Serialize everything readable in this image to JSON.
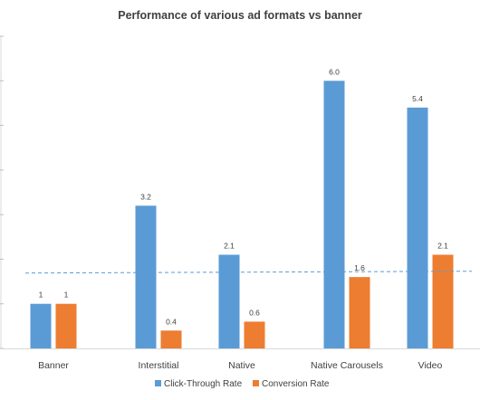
{
  "chart_data": {
    "type": "bar",
    "title": "Performance of various ad formats vs banner",
    "categories": [
      "Banner",
      "Interstitial",
      "Native",
      "Native Carousels",
      "Video"
    ],
    "series": [
      {
        "name": "Click-Through Rate",
        "color": "#5B9BD5",
        "values": [
          1,
          3.2,
          2.1,
          6.0,
          5.4
        ],
        "labels": [
          "1",
          "3.2",
          "2.1",
          "6.0",
          "5.4"
        ]
      },
      {
        "name": "Conversion Rate",
        "color": "#ED7D31",
        "values": [
          1,
          0.4,
          0.6,
          1.6,
          2.1
        ],
        "labels": [
          "1",
          "0.4",
          "0.6",
          "1.6",
          "2.1"
        ]
      }
    ],
    "reference_line": {
      "value": 1.7,
      "color": "#5B9BD5",
      "style": "dashed"
    },
    "ylim": [
      0,
      7
    ],
    "grid": false,
    "legend_position": "bottom"
  }
}
